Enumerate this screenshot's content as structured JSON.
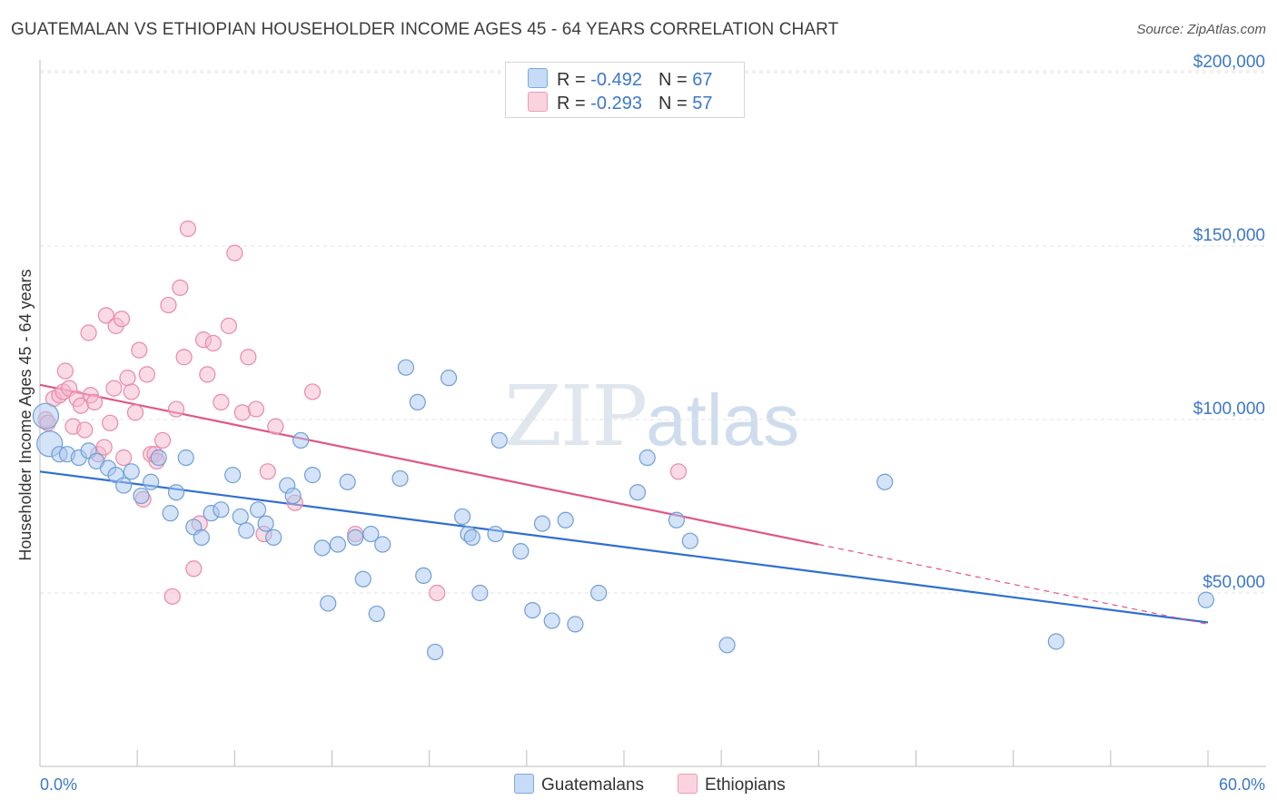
{
  "title": "GUATEMALAN VS ETHIOPIAN HOUSEHOLDER INCOME AGES 45 - 64 YEARS CORRELATION CHART",
  "source": "Source: ZipAtlas.com",
  "watermark": {
    "zip": "ZIP",
    "atlas": "atlas"
  },
  "legend": {
    "rows": [
      {
        "r_label": "R = ",
        "r_value": "-0.492",
        "n_label": "N = ",
        "n_value": "67",
        "color": "#a9c8f0"
      },
      {
        "r_label": "R = ",
        "r_value": "-0.293",
        "n_label": "N = ",
        "n_value": "57",
        "color": "#f6b8cb"
      }
    ]
  },
  "bottom_legend": [
    {
      "label": "Guatemalans",
      "color": "#a9c8f0"
    },
    {
      "label": "Ethiopians",
      "color": "#f6b8cb"
    }
  ],
  "chart_data": {
    "type": "scatter",
    "title": "GUATEMALAN VS ETHIOPIAN HOUSEHOLDER INCOME AGES 45 - 64 YEARS CORRELATION CHART",
    "xlabel": "",
    "ylabel": "Householder Income Ages 45 - 64 years",
    "xlim": [
      0,
      60
    ],
    "ylim": [
      0,
      205000
    ],
    "x_tick_labels": [
      {
        "value": 0,
        "label": "0.0%"
      },
      {
        "value": 60,
        "label": "60.0%"
      }
    ],
    "y_tick_labels": [
      {
        "value": 50000,
        "label": "$50,000"
      },
      {
        "value": 100000,
        "label": "$100,000"
      },
      {
        "value": 150000,
        "label": "$150,000"
      },
      {
        "value": 200000,
        "label": "$200,000"
      }
    ],
    "grid": true,
    "series": [
      {
        "name": "Guatemalans",
        "color": "#a9c8f0",
        "stroke": "#6f9fd8",
        "trend_color": "#2f6fd0",
        "trend": {
          "x0": 0,
          "y0": 85000,
          "x1": 60,
          "y1": 41500
        },
        "points": [
          [
            0.3,
            101000
          ],
          [
            0.5,
            93000
          ],
          [
            1.0,
            90000
          ],
          [
            1.4,
            90000
          ],
          [
            2.0,
            89000
          ],
          [
            2.5,
            91000
          ],
          [
            2.9,
            88000
          ],
          [
            3.5,
            86000
          ],
          [
            3.9,
            84000
          ],
          [
            4.3,
            81000
          ],
          [
            4.7,
            85000
          ],
          [
            5.2,
            78000
          ],
          [
            5.7,
            82000
          ],
          [
            6.1,
            89000
          ],
          [
            6.7,
            73000
          ],
          [
            7.0,
            79000
          ],
          [
            7.5,
            89000
          ],
          [
            7.9,
            69000
          ],
          [
            8.3,
            66000
          ],
          [
            8.8,
            73000
          ],
          [
            9.3,
            74000
          ],
          [
            9.9,
            84000
          ],
          [
            10.3,
            72000
          ],
          [
            10.6,
            68000
          ],
          [
            11.2,
            74000
          ],
          [
            11.6,
            70000
          ],
          [
            12.0,
            66000
          ],
          [
            12.7,
            81000
          ],
          [
            13.0,
            78000
          ],
          [
            13.4,
            94000
          ],
          [
            14.0,
            84000
          ],
          [
            14.5,
            63000
          ],
          [
            14.8,
            47000
          ],
          [
            15.3,
            64000
          ],
          [
            15.8,
            82000
          ],
          [
            16.2,
            66000
          ],
          [
            16.6,
            54000
          ],
          [
            17.0,
            67000
          ],
          [
            17.3,
            44000
          ],
          [
            17.6,
            64000
          ],
          [
            18.5,
            83000
          ],
          [
            18.8,
            115000
          ],
          [
            19.4,
            105000
          ],
          [
            19.7,
            55000
          ],
          [
            20.3,
            33000
          ],
          [
            21.0,
            112000
          ],
          [
            21.7,
            72000
          ],
          [
            22.0,
            67000
          ],
          [
            22.2,
            66000
          ],
          [
            22.6,
            50000
          ],
          [
            23.4,
            67000
          ],
          [
            23.6,
            94000
          ],
          [
            24.7,
            62000
          ],
          [
            25.3,
            45000
          ],
          [
            25.8,
            70000
          ],
          [
            26.3,
            42000
          ],
          [
            27.0,
            71000
          ],
          [
            27.5,
            41000
          ],
          [
            28.7,
            50000
          ],
          [
            30.7,
            79000
          ],
          [
            31.2,
            89000
          ],
          [
            32.7,
            71000
          ],
          [
            33.4,
            65000
          ],
          [
            35.3,
            35000
          ],
          [
            43.4,
            82000
          ],
          [
            52.2,
            36000
          ],
          [
            59.9,
            48000
          ]
        ]
      },
      {
        "name": "Ethiopians",
        "color": "#f6b8cb",
        "stroke": "#e98aa8",
        "trend_color": "#e05588",
        "trend": {
          "x0": 0,
          "y0": 110000,
          "x1": 40,
          "y1": 64000
        },
        "trend_dashed_to": {
          "x": 60,
          "y": 41000
        },
        "points": [
          [
            0.3,
            100000
          ],
          [
            0.4,
            99000
          ],
          [
            0.7,
            106000
          ],
          [
            1.0,
            107000
          ],
          [
            1.2,
            108000
          ],
          [
            1.3,
            114000
          ],
          [
            1.5,
            109000
          ],
          [
            1.7,
            98000
          ],
          [
            1.9,
            106000
          ],
          [
            2.1,
            104000
          ],
          [
            2.3,
            97000
          ],
          [
            2.5,
            125000
          ],
          [
            2.6,
            107000
          ],
          [
            2.8,
            105000
          ],
          [
            3.0,
            90000
          ],
          [
            3.3,
            92000
          ],
          [
            3.4,
            130000
          ],
          [
            3.6,
            99000
          ],
          [
            3.8,
            109000
          ],
          [
            3.9,
            127000
          ],
          [
            4.2,
            129000
          ],
          [
            4.3,
            89000
          ],
          [
            4.5,
            112000
          ],
          [
            4.7,
            108000
          ],
          [
            4.9,
            102000
          ],
          [
            5.1,
            120000
          ],
          [
            5.3,
            77000
          ],
          [
            5.5,
            113000
          ],
          [
            5.7,
            90000
          ],
          [
            5.9,
            90000
          ],
          [
            6.0,
            88000
          ],
          [
            6.3,
            94000
          ],
          [
            6.6,
            133000
          ],
          [
            6.8,
            49000
          ],
          [
            7.0,
            103000
          ],
          [
            7.2,
            138000
          ],
          [
            7.4,
            118000
          ],
          [
            7.6,
            155000
          ],
          [
            7.9,
            57000
          ],
          [
            8.2,
            70000
          ],
          [
            8.4,
            123000
          ],
          [
            8.6,
            113000
          ],
          [
            8.9,
            122000
          ],
          [
            9.3,
            105000
          ],
          [
            9.7,
            127000
          ],
          [
            10.0,
            148000
          ],
          [
            10.4,
            102000
          ],
          [
            10.7,
            118000
          ],
          [
            11.1,
            103000
          ],
          [
            11.5,
            67000
          ],
          [
            11.7,
            85000
          ],
          [
            12.1,
            98000
          ],
          [
            13.1,
            76000
          ],
          [
            14.0,
            108000
          ],
          [
            16.2,
            67000
          ],
          [
            20.4,
            50000
          ],
          [
            32.8,
            85000
          ]
        ]
      }
    ]
  }
}
